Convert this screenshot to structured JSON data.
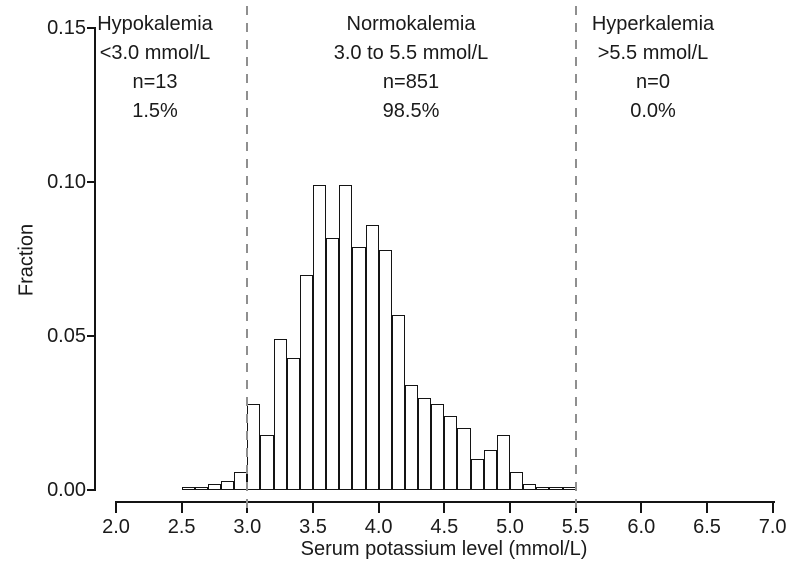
{
  "chart_data": {
    "type": "bar",
    "subtype": "histogram",
    "title": "",
    "xlabel": "Serum potassium level (mmol/L)",
    "ylabel": "Fraction",
    "xlim": [
      2.0,
      7.0
    ],
    "ylim": [
      0.0,
      0.15
    ],
    "grid": false,
    "bar_outline_only": true,
    "bin_width": 0.1,
    "x_ticks": [
      {
        "value": 2.0,
        "label": "2.0"
      },
      {
        "value": 2.5,
        "label": "2.5"
      },
      {
        "value": 3.0,
        "label": "3.0"
      },
      {
        "value": 3.5,
        "label": "3.5"
      },
      {
        "value": 4.0,
        "label": "4.0"
      },
      {
        "value": 4.5,
        "label": "4.5"
      },
      {
        "value": 5.0,
        "label": "5.0"
      },
      {
        "value": 5.5,
        "label": "5.5"
      },
      {
        "value": 6.0,
        "label": "6.0"
      },
      {
        "value": 6.5,
        "label": "6.5"
      },
      {
        "value": 7.0,
        "label": "7.0"
      }
    ],
    "y_ticks": [
      {
        "value": 0.0,
        "label": "0.00"
      },
      {
        "value": 0.05,
        "label": "0.05"
      },
      {
        "value": 0.1,
        "label": "0.10"
      },
      {
        "value": 0.15,
        "label": "0.15"
      }
    ],
    "reference_lines": [
      {
        "x": 3.0,
        "style": "dashed"
      },
      {
        "x": 5.5,
        "style": "dashed"
      }
    ],
    "bins": [
      {
        "x": 2.5,
        "fraction": 0.001
      },
      {
        "x": 2.6,
        "fraction": 0.001
      },
      {
        "x": 2.7,
        "fraction": 0.002
      },
      {
        "x": 2.8,
        "fraction": 0.003
      },
      {
        "x": 2.9,
        "fraction": 0.006
      },
      {
        "x": 3.0,
        "fraction": 0.028
      },
      {
        "x": 3.1,
        "fraction": 0.018
      },
      {
        "x": 3.2,
        "fraction": 0.049
      },
      {
        "x": 3.3,
        "fraction": 0.043
      },
      {
        "x": 3.4,
        "fraction": 0.07
      },
      {
        "x": 3.5,
        "fraction": 0.099
      },
      {
        "x": 3.6,
        "fraction": 0.082
      },
      {
        "x": 3.7,
        "fraction": 0.099
      },
      {
        "x": 3.8,
        "fraction": 0.079
      },
      {
        "x": 3.9,
        "fraction": 0.086
      },
      {
        "x": 4.0,
        "fraction": 0.078
      },
      {
        "x": 4.1,
        "fraction": 0.057
      },
      {
        "x": 4.2,
        "fraction": 0.034
      },
      {
        "x": 4.3,
        "fraction": 0.03
      },
      {
        "x": 4.4,
        "fraction": 0.028
      },
      {
        "x": 4.5,
        "fraction": 0.024
      },
      {
        "x": 4.6,
        "fraction": 0.02
      },
      {
        "x": 4.7,
        "fraction": 0.01
      },
      {
        "x": 4.8,
        "fraction": 0.013
      },
      {
        "x": 4.9,
        "fraction": 0.018
      },
      {
        "x": 5.0,
        "fraction": 0.006
      },
      {
        "x": 5.1,
        "fraction": 0.002
      },
      {
        "x": 5.2,
        "fraction": 0.001
      },
      {
        "x": 5.3,
        "fraction": 0.001
      },
      {
        "x": 5.4,
        "fraction": 0.001
      }
    ]
  },
  "regions": [
    {
      "name": "Hypokalemia",
      "range": "<3.0 mmol/L",
      "n": "n=13",
      "pct": "1.5%"
    },
    {
      "name": "Normokalemia",
      "range": "3.0 to 5.5 mmol/L",
      "n": "n=851",
      "pct": "98.5%"
    },
    {
      "name": "Hyperkalemia",
      "range": ">5.5 mmol/L",
      "n": "n=0",
      "pct": "0.0%"
    }
  ],
  "colors": {
    "background": "#ffffff",
    "bar_fill": "#ffffff",
    "bar_outline": "#141414",
    "axis": "#141414",
    "reference_line": "#8f8f8f",
    "text": "#1a1a1a"
  }
}
